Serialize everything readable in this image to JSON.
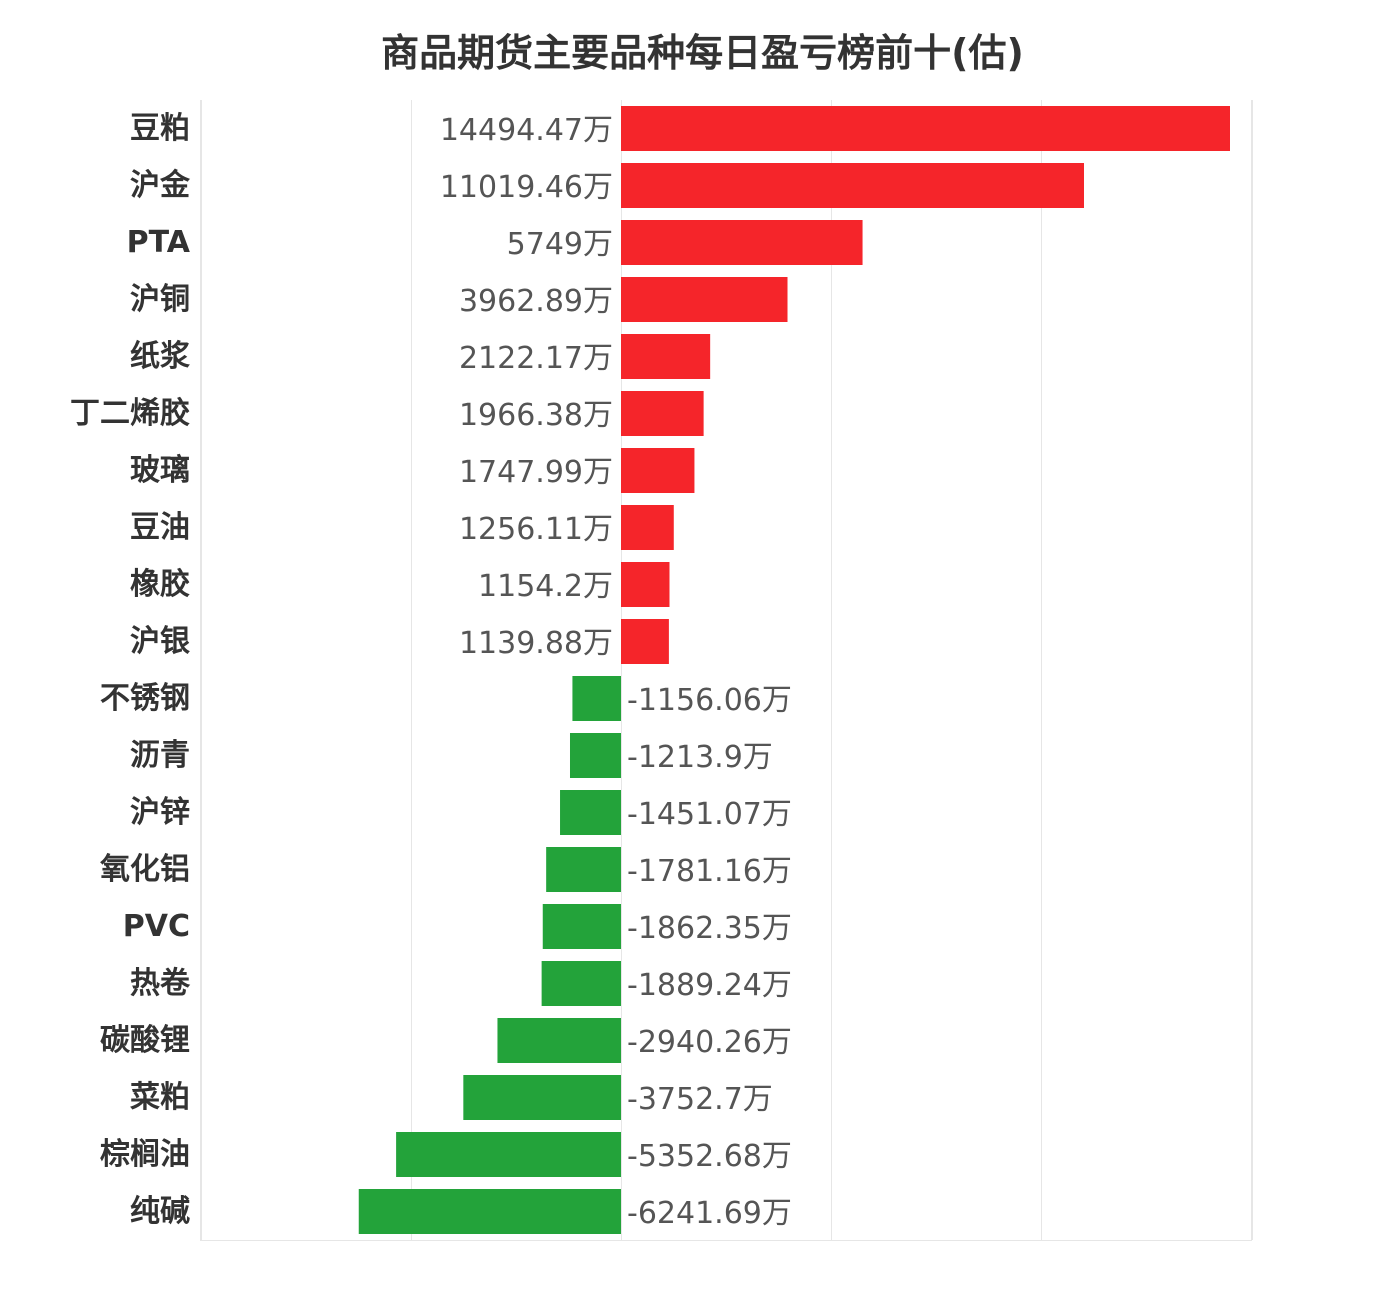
{
  "chart_data": {
    "type": "bar",
    "orientation": "horizontal",
    "title": "商品期货主要品种每日盈亏榜前十(估)",
    "unit_suffix": "万",
    "categories": [
      "豆粕",
      "沪金",
      "PTA",
      "沪铜",
      "纸浆",
      "丁二烯胶",
      "玻璃",
      "豆油",
      "橡胶",
      "沪银",
      "不锈钢",
      "沥青",
      "沪锌",
      "氧化铝",
      "PVC",
      "热卷",
      "碳酸锂",
      "菜粕",
      "棕榈油",
      "纯碱"
    ],
    "values": [
      14494.47,
      11019.46,
      5749,
      3962.89,
      2122.17,
      1966.38,
      1747.99,
      1256.11,
      1154.2,
      1139.88,
      -1156.06,
      -1213.9,
      -1451.07,
      -1781.16,
      -1862.35,
      -1889.24,
      -2940.26,
      -3752.7,
      -5352.68,
      -6241.69
    ],
    "value_labels": [
      "14494.47万",
      "11019.46万",
      "5749万",
      "3962.89万",
      "2122.17万",
      "1966.38万",
      "1747.99万",
      "1256.11万",
      "1154.2万",
      "1139.88万",
      "-1156.06万",
      "-1213.9万",
      "-1451.07万",
      "-1781.16万",
      "-1862.35万",
      "-1889.24万",
      "-2940.26万",
      "-3752.7万",
      "-5352.68万",
      "-6241.69万"
    ],
    "xlim": [
      -10000,
      15000
    ],
    "grid": true,
    "legend": "none",
    "colors": {
      "positive": "#f5252a",
      "negative": "#23a33a",
      "grid": "#e6e6e6",
      "category_text": "#333333",
      "value_text": "#555555"
    }
  }
}
